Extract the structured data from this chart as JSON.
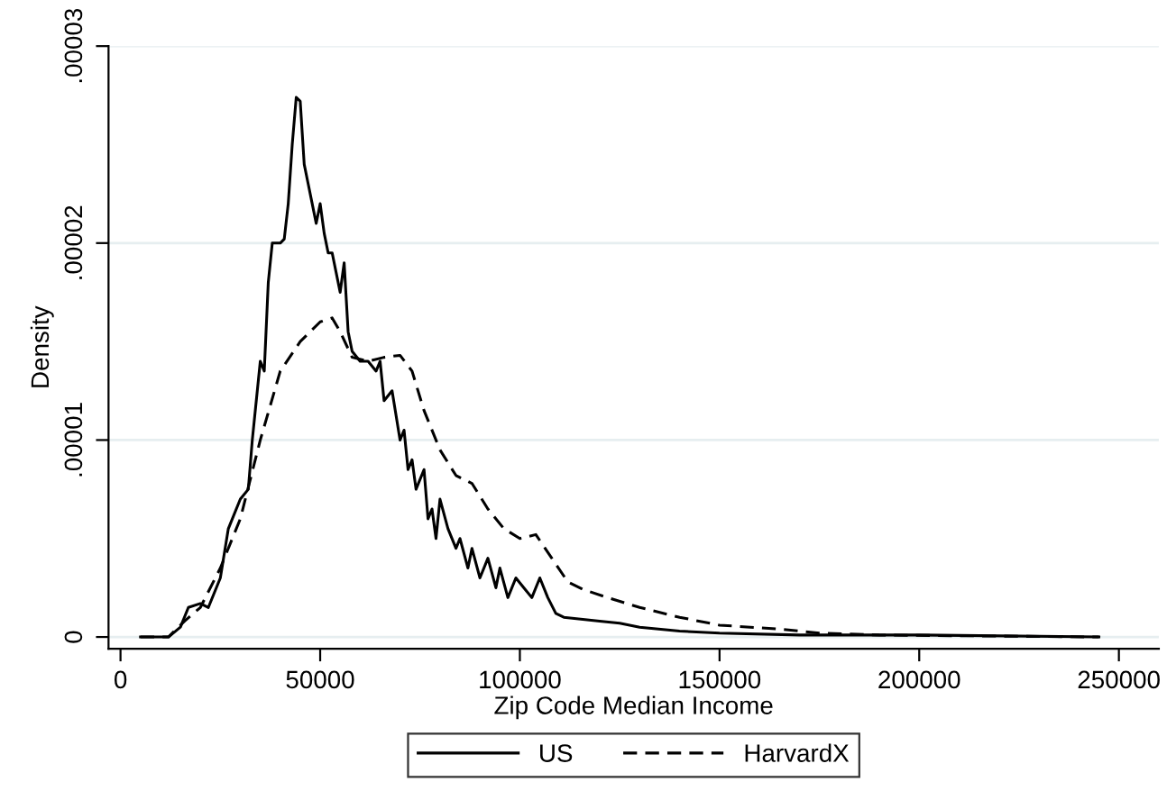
{
  "chart_data": {
    "type": "line",
    "xlabel": "Zip Code Median Income",
    "ylabel": "Density",
    "xlim": [
      -3000,
      260000
    ],
    "ylim": [
      -6e-07,
      3e-05
    ],
    "xticks": [
      0,
      50000,
      100000,
      150000,
      200000,
      250000
    ],
    "yticks": [
      0,
      {
        "value": 1e-05,
        "label": ".00001"
      },
      {
        "value": 2e-05,
        "label": ".00002"
      },
      {
        "value": 3e-05,
        "label": ".00003"
      }
    ],
    "grid": "y",
    "legend": "bottom",
    "series": [
      {
        "name": "US",
        "color": "#000000",
        "line_style": "solid",
        "x": [
          5000,
          12000,
          15000,
          17000,
          20000,
          22000,
          25000,
          27000,
          30000,
          32000,
          33000,
          35000,
          36000,
          37000,
          38000,
          40000,
          41000,
          42000,
          43000,
          44000,
          45000,
          46000,
          47000,
          48000,
          49000,
          50000,
          51000,
          52000,
          53000,
          54000,
          55000,
          56000,
          57000,
          58000,
          60000,
          62000,
          64000,
          65000,
          66000,
          68000,
          70000,
          71000,
          72000,
          73000,
          74000,
          76000,
          77000,
          78000,
          79000,
          80000,
          82000,
          84000,
          85000,
          87000,
          88000,
          90000,
          92000,
          94000,
          95000,
          97000,
          99000,
          101000,
          103000,
          105000,
          107000,
          109000,
          111000,
          120000,
          125000,
          130000,
          140000,
          150000,
          170000,
          200000,
          245000
        ],
        "values": [
          0,
          0,
          5e-07,
          1.5e-06,
          1.7e-06,
          1.5e-06,
          3e-06,
          5.5e-06,
          7e-06,
          7.5e-06,
          1e-05,
          1.4e-05,
          1.35e-05,
          1.8e-05,
          2e-05,
          2e-05,
          2.02e-05,
          2.2e-05,
          2.5e-05,
          2.74e-05,
          2.72e-05,
          2.4e-05,
          2.3e-05,
          2.2e-05,
          2.1e-05,
          2.2e-05,
          2.05e-05,
          1.95e-05,
          1.95e-05,
          1.85e-05,
          1.75e-05,
          1.9e-05,
          1.55e-05,
          1.45e-05,
          1.4e-05,
          1.4e-05,
          1.35e-05,
          1.4e-05,
          1.2e-05,
          1.25e-05,
          1e-05,
          1.05e-05,
          8.5e-06,
          9e-06,
          7.5e-06,
          8.5e-06,
          6e-06,
          6.5e-06,
          5e-06,
          7e-06,
          5.5e-06,
          4.5e-06,
          5e-06,
          3.5e-06,
          4.5e-06,
          3e-06,
          4e-06,
          2.5e-06,
          3.5e-06,
          2e-06,
          3e-06,
          2.5e-06,
          2e-06,
          3e-06,
          2e-06,
          1.2e-06,
          1e-06,
          8e-07,
          7e-07,
          5e-07,
          3e-07,
          2e-07,
          1e-07,
          1e-07,
          0
        ]
      },
      {
        "name": "HarvardX",
        "color": "#000000",
        "line_style": "dashed",
        "x": [
          5000,
          12000,
          16000,
          20000,
          25000,
          30000,
          35000,
          40000,
          45000,
          50000,
          53000,
          55000,
          58000,
          62000,
          66000,
          70000,
          73000,
          76000,
          80000,
          84000,
          88000,
          92000,
          96000,
          100000,
          104000,
          108000,
          112000,
          116000,
          122000,
          130000,
          140000,
          150000,
          165000,
          175000,
          190000,
          245000
        ],
        "values": [
          0,
          0,
          8e-07,
          1.5e-06,
          3.5e-06,
          6e-06,
          1e-05,
          1.35e-05,
          1.5e-05,
          1.6e-05,
          1.62e-05,
          1.55e-05,
          1.42e-05,
          1.4e-05,
          1.42e-05,
          1.43e-05,
          1.35e-05,
          1.15e-05,
          9.5e-06,
          8.2e-06,
          7.8e-06,
          6.5e-06,
          5.5e-06,
          5e-06,
          5.2e-06,
          4e-06,
          2.8e-06,
          2.4e-06,
          2e-06,
          1.5e-06,
          1e-06,
          6e-07,
          4e-07,
          2e-07,
          1e-07,
          0
        ]
      }
    ]
  }
}
